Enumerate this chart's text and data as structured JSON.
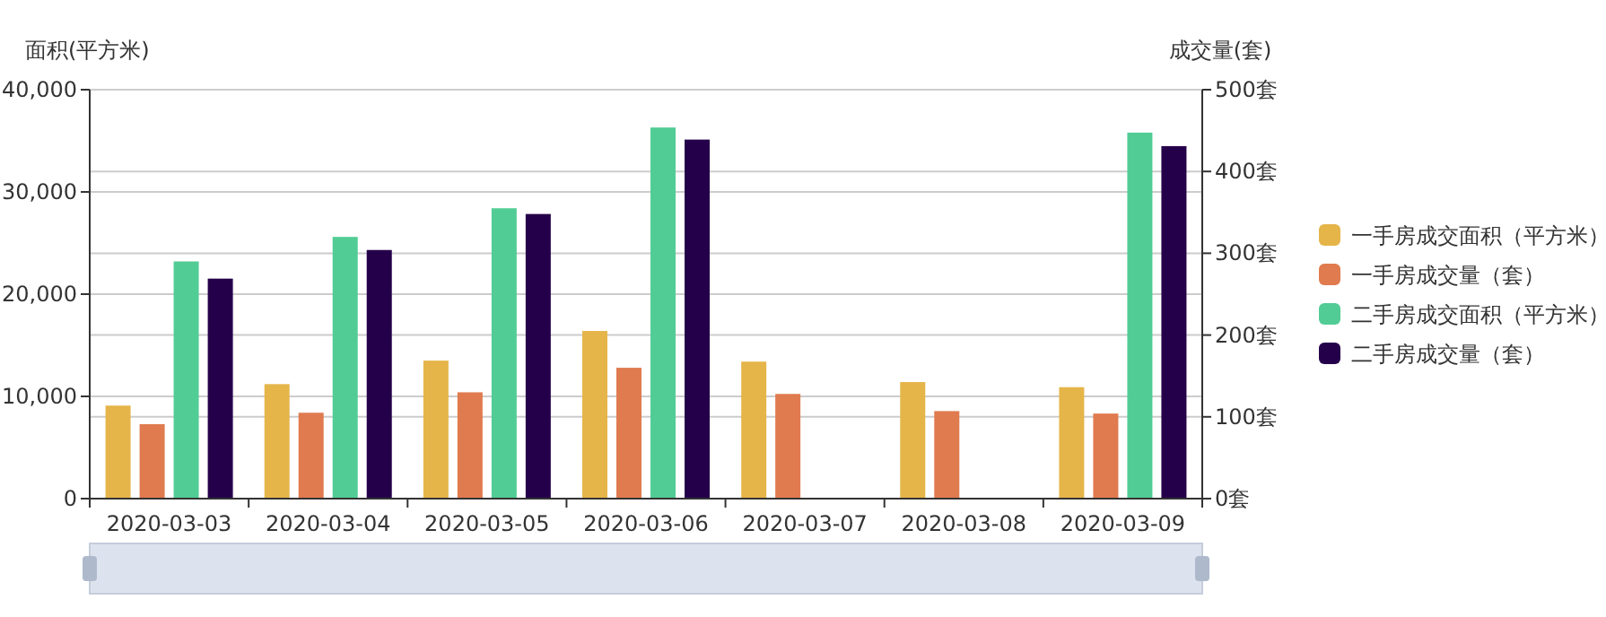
{
  "chart_data": {
    "type": "bar",
    "ylabel": "面积(平方米)",
    "y2label": "成交量(套)",
    "categories": [
      "2020-03-03",
      "2020-03-04",
      "2020-03-05",
      "2020-03-06",
      "2020-03-07",
      "2020-03-08",
      "2020-03-09"
    ],
    "series": [
      {
        "name": "一手房成交面积（平方米）",
        "color": "#e5b54a",
        "values": [
          9100,
          11200,
          13500,
          16400,
          13400,
          11400,
          10900
        ]
      },
      {
        "name": "一手房成交量（套）",
        "color": "#e07b4f",
        "axis": "y2",
        "values": [
          91,
          105,
          130,
          160,
          128,
          107,
          104
        ]
      },
      {
        "name": "二手房成交面积（平方米）",
        "color": "#52cc95",
        "values": [
          23200,
          25600,
          28400,
          36300,
          null,
          null,
          35800
        ]
      },
      {
        "name": "二手房成交量（套）",
        "color": "#25004a",
        "axis": "y2",
        "values": [
          269,
          304,
          348,
          439,
          null,
          null,
          431
        ]
      }
    ],
    "ylim": [
      0,
      40000
    ],
    "yticks": [
      {
        "value": 0,
        "label": "0"
      },
      {
        "value": 10000,
        "label": "10,000"
      },
      {
        "value": 20000,
        "label": "20,000"
      },
      {
        "value": 30000,
        "label": "30,000"
      },
      {
        "value": 40000,
        "label": "40,000"
      }
    ],
    "y2lim": [
      0,
      500
    ],
    "y2ticks": [
      {
        "value": 0,
        "label": "0套"
      },
      {
        "value": 100,
        "label": "100套"
      },
      {
        "value": 200,
        "label": "200套"
      },
      {
        "value": 300,
        "label": "300套"
      },
      {
        "value": 400,
        "label": "400套"
      },
      {
        "value": 500,
        "label": "500套"
      }
    ],
    "grid": true,
    "legend": "right"
  }
}
